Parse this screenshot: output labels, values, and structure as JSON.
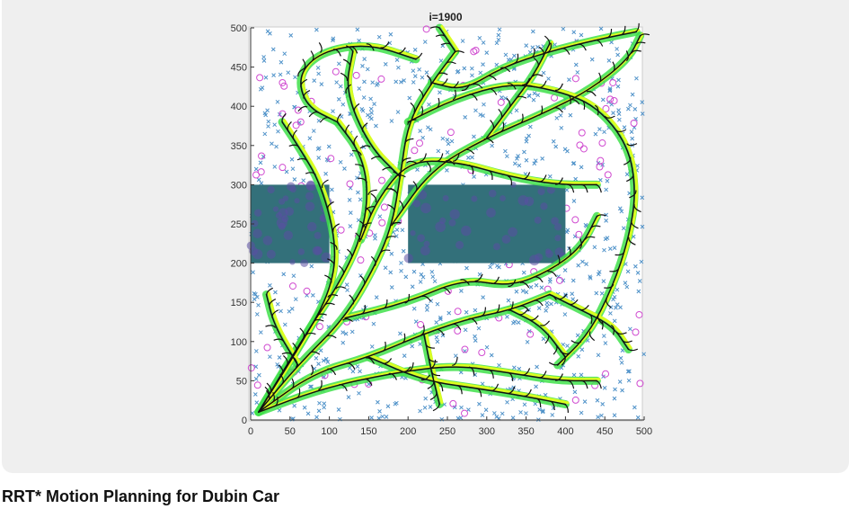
{
  "caption": "RRT* Motion Planning for Dubin Car",
  "chart_data": {
    "type": "scatter",
    "title": "i=1900",
    "xlabel": "",
    "ylabel": "",
    "xlim": [
      0,
      500
    ],
    "ylim": [
      0,
      500
    ],
    "x_ticks": [
      "0",
      "50",
      "100",
      "150",
      "200",
      "250",
      "300",
      "350",
      "400",
      "450",
      "500"
    ],
    "y_ticks": [
      "0",
      "50",
      "100",
      "150",
      "200",
      "250",
      "300",
      "350",
      "400",
      "450",
      "500"
    ],
    "grid": false,
    "obstacles": [
      {
        "x": [
          0,
          100
        ],
        "y": [
          200,
          300
        ]
      },
      {
        "x": [
          200,
          400
        ],
        "y": [
          200,
          300
        ]
      }
    ],
    "start": {
      "x": 10,
      "y": 10
    },
    "goal": {
      "x": 490,
      "y": 490
    },
    "tree_branches": [
      [
        [
          10,
          10
        ],
        [
          60,
          70
        ],
        [
          120,
          130
        ],
        [
          160,
          200
        ],
        [
          180,
          250
        ],
        [
          190,
          310
        ],
        [
          200,
          380
        ],
        [
          230,
          430
        ],
        [
          260,
          470
        ]
      ],
      [
        [
          10,
          10
        ],
        [
          70,
          110
        ],
        [
          110,
          170
        ],
        [
          140,
          230
        ],
        [
          150,
          290
        ],
        [
          140,
          340
        ],
        [
          110,
          380
        ]
      ],
      [
        [
          10,
          10
        ],
        [
          80,
          60
        ],
        [
          150,
          80
        ],
        [
          220,
          110
        ],
        [
          280,
          130
        ],
        [
          330,
          140
        ],
        [
          380,
          160
        ]
      ],
      [
        [
          10,
          10
        ],
        [
          90,
          40
        ],
        [
          180,
          60
        ],
        [
          260,
          70
        ],
        [
          330,
          60
        ],
        [
          390,
          50
        ],
        [
          440,
          50
        ]
      ],
      [
        [
          10,
          10
        ],
        [
          60,
          90
        ],
        [
          100,
          160
        ],
        [
          110,
          220
        ],
        [
          90,
          300
        ],
        [
          60,
          350
        ],
        [
          40,
          380
        ]
      ],
      [
        [
          180,
          250
        ],
        [
          230,
          320
        ],
        [
          300,
          360
        ],
        [
          370,
          390
        ],
        [
          430,
          420
        ],
        [
          480,
          460
        ],
        [
          495,
          490
        ]
      ],
      [
        [
          200,
          380
        ],
        [
          260,
          410
        ],
        [
          330,
          430
        ],
        [
          390,
          420
        ],
        [
          440,
          400
        ],
        [
          480,
          350
        ],
        [
          490,
          290
        ],
        [
          480,
          230
        ],
        [
          460,
          170
        ],
        [
          430,
          110
        ],
        [
          390,
          70
        ]
      ],
      [
        [
          230,
          430
        ],
        [
          270,
          420
        ],
        [
          320,
          450
        ],
        [
          380,
          470
        ],
        [
          440,
          485
        ],
        [
          490,
          495
        ]
      ],
      [
        [
          120,
          130
        ],
        [
          200,
          150
        ],
        [
          270,
          180
        ],
        [
          330,
          170
        ],
        [
          380,
          190
        ],
        [
          420,
          220
        ],
        [
          440,
          260
        ]
      ],
      [
        [
          150,
          80
        ],
        [
          220,
          50
        ],
        [
          290,
          40
        ],
        [
          350,
          30
        ],
        [
          400,
          20
        ]
      ],
      [
        [
          260,
          470
        ],
        [
          240,
          500
        ]
      ],
      [
        [
          110,
          380
        ],
        [
          70,
          400
        ],
        [
          60,
          440
        ],
        [
          90,
          470
        ],
        [
          150,
          480
        ],
        [
          210,
          460
        ]
      ],
      [
        [
          380,
          160
        ],
        [
          420,
          140
        ],
        [
          460,
          120
        ],
        [
          480,
          90
        ]
      ],
      [
        [
          140,
          230
        ],
        [
          160,
          280
        ],
        [
          200,
          330
        ],
        [
          260,
          330
        ],
        [
          330,
          310
        ],
        [
          390,
          300
        ],
        [
          440,
          300
        ]
      ],
      [
        [
          60,
          70
        ],
        [
          30,
          120
        ],
        [
          20,
          160
        ]
      ],
      [
        [
          300,
          360
        ],
        [
          330,
          400
        ],
        [
          360,
          440
        ],
        [
          380,
          480
        ]
      ],
      [
        [
          220,
          110
        ],
        [
          230,
          60
        ],
        [
          240,
          20
        ]
      ],
      [
        [
          330,
          140
        ],
        [
          370,
          120
        ],
        [
          400,
          80
        ]
      ],
      [
        [
          190,
          310
        ],
        [
          150,
          350
        ],
        [
          120,
          420
        ],
        [
          130,
          470
        ]
      ]
    ],
    "samples_cross_count": 900,
    "samples_circle_count": 110,
    "colors": {
      "obstacle": "#33707a",
      "tree_green": "#3fe04a",
      "tree_yellow": "#e8ff1a",
      "branch_black": "#111111",
      "sample_cross": "#4f92c9",
      "sample_circle": "#d04bd0"
    }
  }
}
